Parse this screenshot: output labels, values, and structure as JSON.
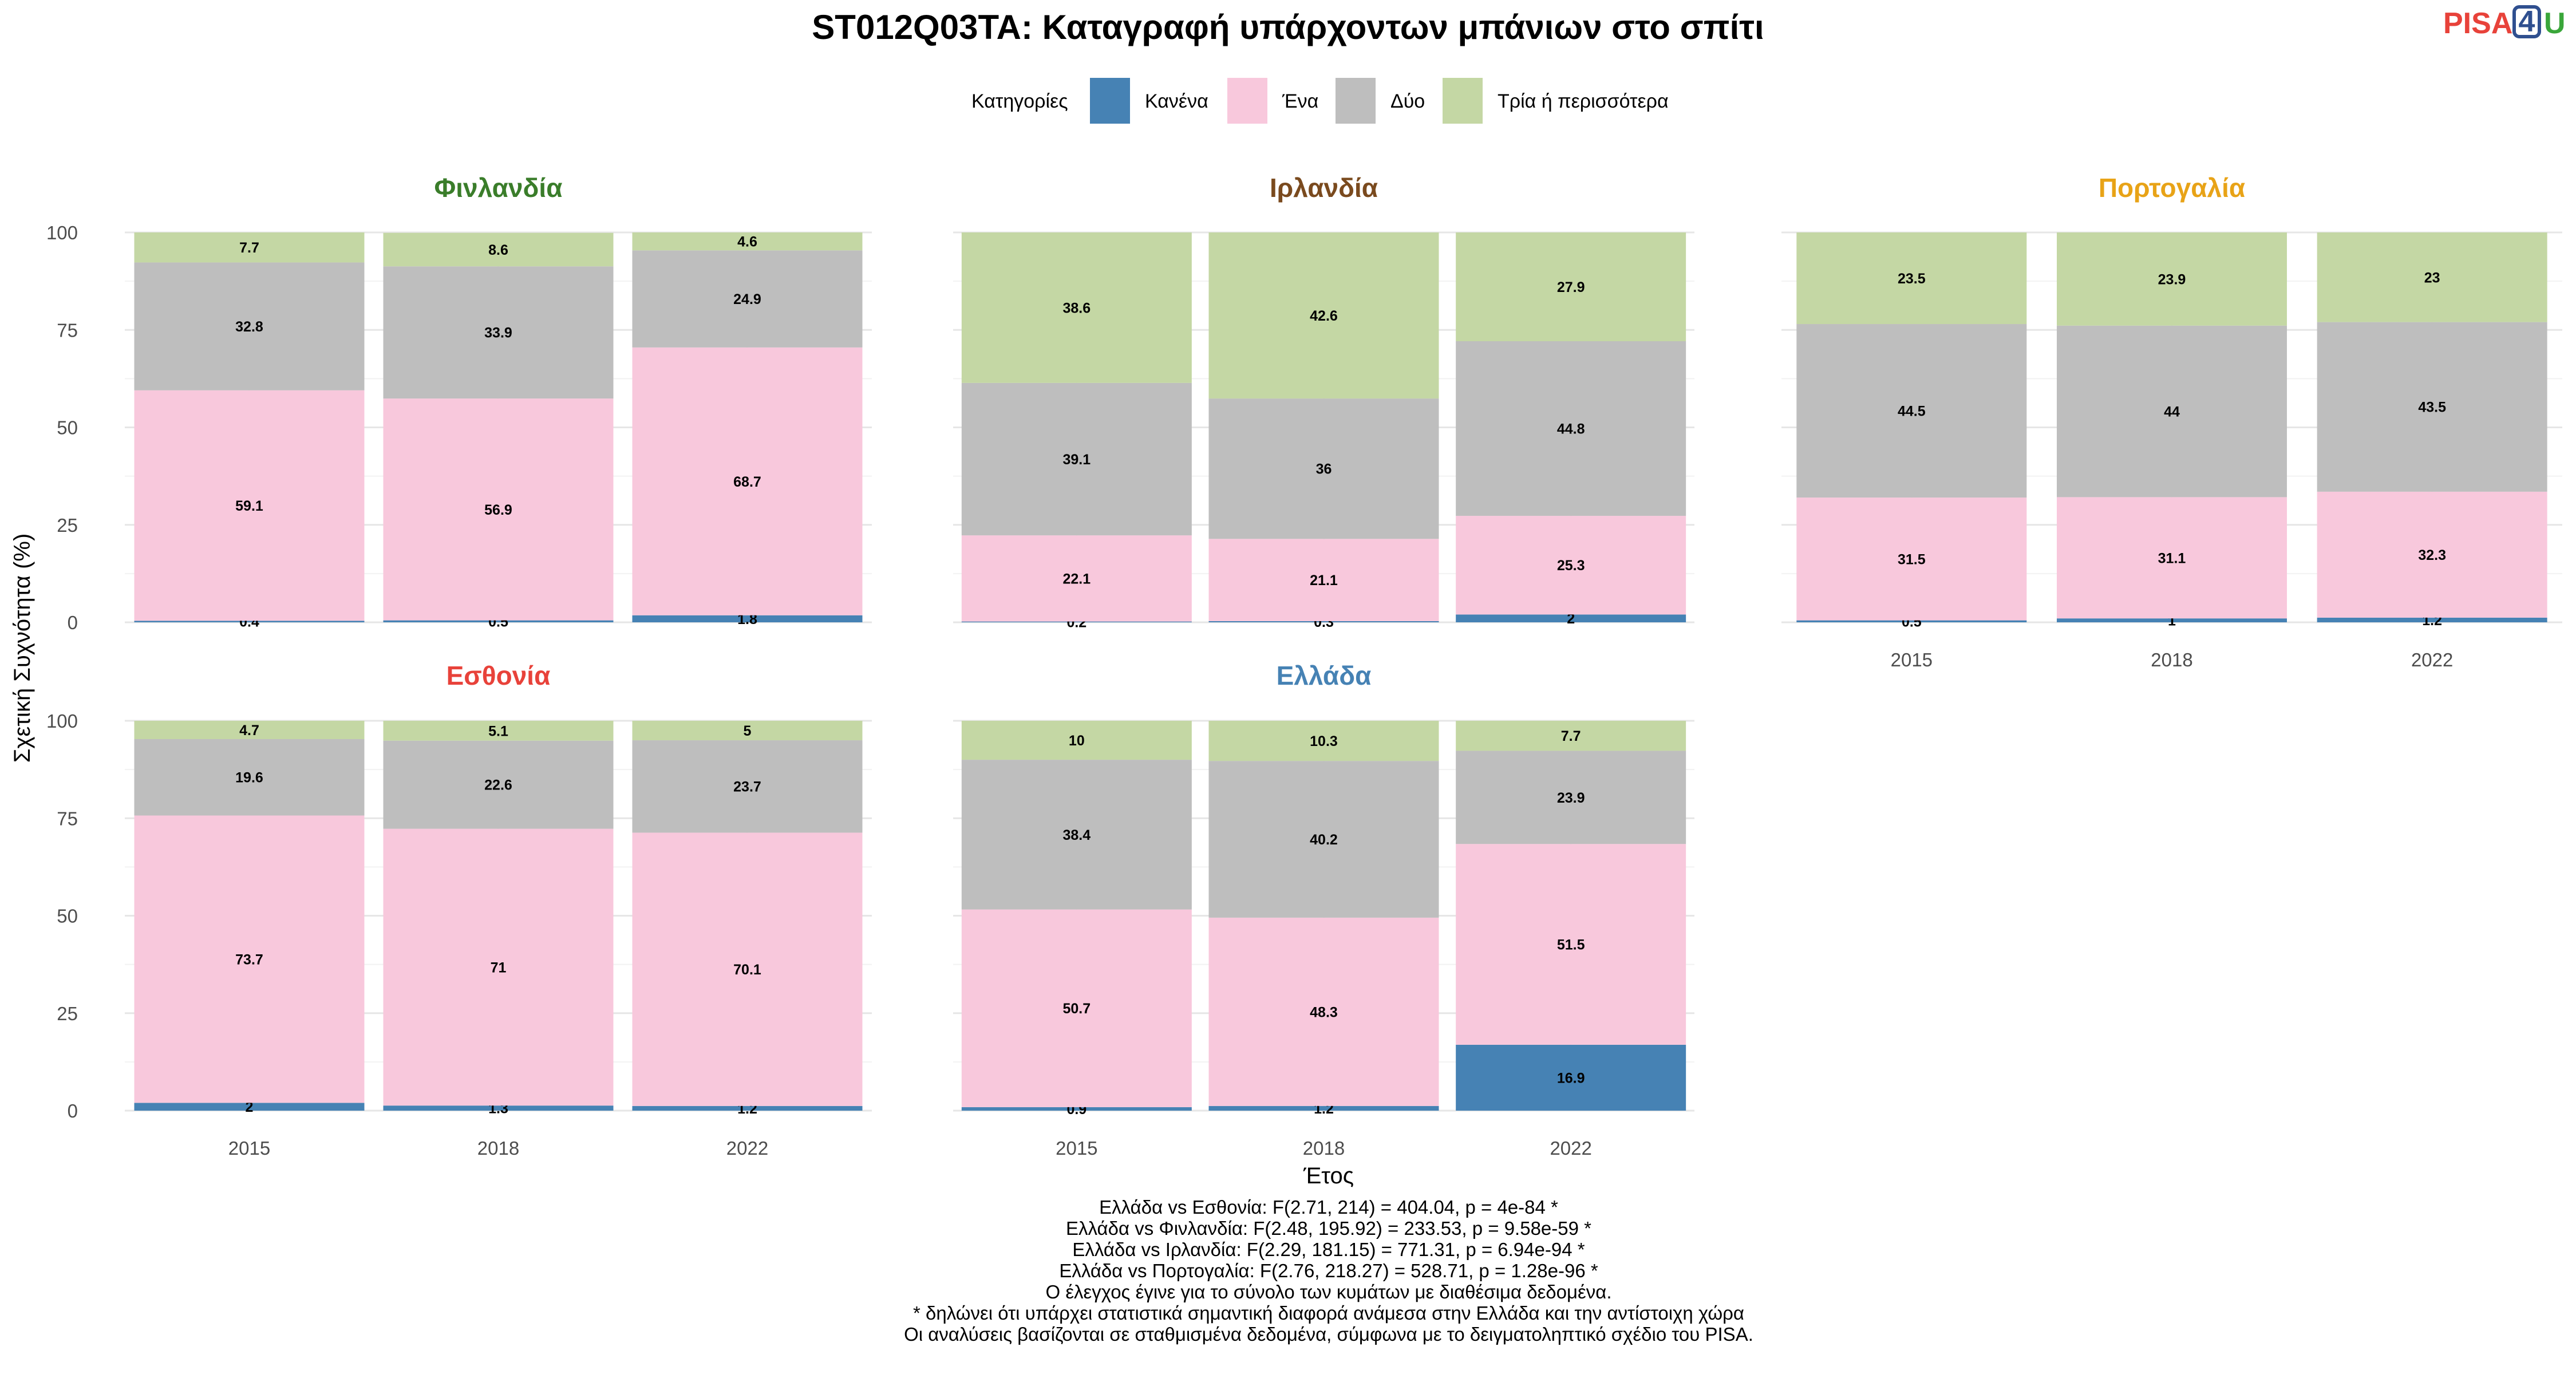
{
  "title": "ST012Q03TA: Καταγραφή υπάρχοντων μπάνιων στο σπίτι",
  "logo": {
    "pisa": "PISA",
    "four": "4",
    "u": "U",
    "colors": {
      "pisa": "#e8423a",
      "four": "#2f4f8f",
      "u": "#3aa63a"
    }
  },
  "legend": {
    "title": "Κατηγορίες",
    "items": [
      {
        "label": "Κανένα",
        "color": "#4682b4"
      },
      {
        "label": "Ένα",
        "color": "#f8c8dc"
      },
      {
        "label": "Δύο",
        "color": "#bebebe"
      },
      {
        "label": "Τρία ή περισσότερα",
        "color": "#c4d7a4"
      }
    ]
  },
  "xlabel": "Έτος",
  "ylabel": "Σχετική Συχνότητα (%)",
  "notes": [
    "Ελλάδα vs Εσθονία: F(2.71, 214) = 404.04, p = 4e-84 *",
    "Ελλάδα vs Φινλανδία: F(2.48, 195.92) = 233.53, p = 9.58e-59 *",
    "Ελλάδα vs Ιρλανδία: F(2.29, 181.15) = 771.31, p = 6.94e-94 *",
    "Ελλάδα vs Πορτογαλία: F(2.76, 218.27) = 528.71, p = 1.28e-96 *",
    "Ο έλεγχος έγινε για το σύνολο των κυμάτων με διαθέσιμα δεδομένα.",
    "* δηλώνει ότι υπάρχει στατιστικά σημαντική διαφορά ανάμεσα στην Ελλάδα και την αντίστοιχη χώρα",
    "Οι αναλύσεις βασίζονται σε σταθμισμένα δεδομένα, σύμφωνα με το δειγματοληπτικό σχέδιο του PISA."
  ],
  "chart_data": {
    "type": "bar",
    "stacked": true,
    "categories": [
      "2015",
      "2018",
      "2022"
    ],
    "ylim": [
      0,
      100
    ],
    "yticks": [
      0,
      25,
      50,
      75,
      100
    ],
    "grid": true,
    "legend_position": "top",
    "series_names": [
      "Κανένα",
      "Ένα",
      "Δύο",
      "Τρία ή περισσότερα"
    ],
    "facets": [
      {
        "country": "Φινλανδία",
        "color": "#3a7d2a",
        "values": [
          [
            0.4,
            59.1,
            32.8,
            7.7
          ],
          [
            0.5,
            56.9,
            33.9,
            8.6
          ],
          [
            1.8,
            68.7,
            24.9,
            4.6
          ]
        ]
      },
      {
        "country": "Ιρλανδία",
        "color": "#7a4a1e",
        "values": [
          [
            0.2,
            22.1,
            39.1,
            38.6
          ],
          [
            0.3,
            21.1,
            36,
            42.6
          ],
          [
            2,
            25.3,
            44.8,
            27.9
          ]
        ]
      },
      {
        "country": "Πορτογαλία",
        "color": "#e8a317",
        "values": [
          [
            0.5,
            31.5,
            44.5,
            23.5
          ],
          [
            1,
            31.1,
            44,
            23.9
          ],
          [
            1.2,
            32.3,
            43.5,
            23
          ]
        ]
      },
      {
        "country": "Εσθονία",
        "color": "#e8423a",
        "values": [
          [
            2,
            73.7,
            19.6,
            4.7
          ],
          [
            1.3,
            71,
            22.6,
            5.1
          ],
          [
            1.2,
            70.1,
            23.7,
            5
          ]
        ]
      },
      {
        "country": "Ελλάδα",
        "color": "#4682b4",
        "values": [
          [
            0.9,
            50.7,
            38.4,
            10
          ],
          [
            1.2,
            48.3,
            40.2,
            10.3
          ],
          [
            16.9,
            51.5,
            23.9,
            7.7
          ]
        ]
      }
    ]
  }
}
